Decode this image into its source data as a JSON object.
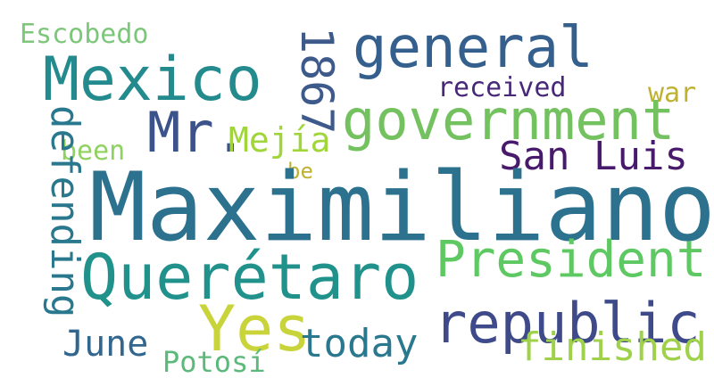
{
  "words": [
    {
      "text": "Escobedo",
      "color": "#7dc77a"
    },
    {
      "text": "Mexico",
      "color": "#238a8d"
    },
    {
      "text": "general",
      "color": "#35608d"
    },
    {
      "text": "war",
      "color": "#bfb233"
    },
    {
      "text": "received",
      "color": "#482878"
    },
    {
      "text": "1867",
      "color": "#3d5a8b"
    },
    {
      "text": "government",
      "color": "#73c15f"
    },
    {
      "text": "Mr.",
      "color": "#3b528b"
    },
    {
      "text": "Mejía",
      "color": "#a0d53c"
    },
    {
      "text": "San Luis",
      "color": "#481a6c"
    },
    {
      "text": "been",
      "color": "#8fd260"
    },
    {
      "text": "be",
      "color": "#bfb233"
    },
    {
      "text": "defending",
      "color": "#2a788e"
    },
    {
      "text": "Maximiliano",
      "color": "#2c728e"
    },
    {
      "text": "Querétaro",
      "color": "#21918c"
    },
    {
      "text": "President",
      "color": "#5ec962"
    },
    {
      "text": "republic",
      "color": "#3e4a89"
    },
    {
      "text": "Yes",
      "color": "#c8d43a"
    },
    {
      "text": "June",
      "color": "#31668e"
    },
    {
      "text": "today",
      "color": "#2a788e"
    },
    {
      "text": "finished",
      "color": "#9fd24a"
    },
    {
      "text": "Potosí",
      "color": "#5cb97b"
    }
  ]
}
